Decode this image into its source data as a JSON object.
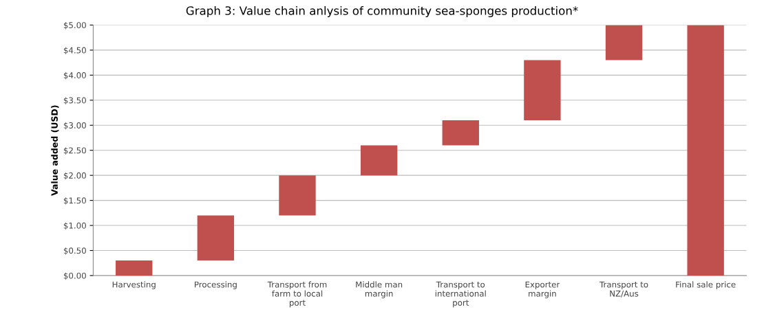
{
  "chart_data": {
    "type": "bar",
    "title": "Graph 3: Value chain anlysis of community sea-sponges production*",
    "ylabel": "Value added (USD)",
    "categories": [
      "Harvesting",
      "Processing",
      "Transport from\nfarm to local\nport",
      "Middle man\nmargin",
      "Transport to\ninternational\nport",
      "Exporter\nmargin",
      "Transport to\nNZ/Aus",
      "Final sale price"
    ],
    "base": [
      0,
      0.3,
      1.2,
      2.0,
      2.6,
      3.1,
      4.3,
      0
    ],
    "values": [
      0.3,
      0.9,
      0.8,
      0.6,
      0.5,
      1.2,
      0.7,
      5.0
    ],
    "color": "#c0504d",
    "ylim": [
      0,
      5
    ],
    "yticks": [
      {
        "value": 0,
        "label": "$0.00"
      },
      {
        "value": 0.5,
        "label": "$0.50"
      },
      {
        "value": 1,
        "label": "$1.00"
      },
      {
        "value": 1.5,
        "label": "$1.50"
      },
      {
        "value": 2,
        "label": "$2.00"
      },
      {
        "value": 2.5,
        "label": "$2.50"
      },
      {
        "value": 3,
        "label": "$3.00"
      },
      {
        "value": 3.5,
        "label": "$3.50"
      },
      {
        "value": 4,
        "label": "$4.00"
      },
      {
        "value": 4.5,
        "label": "$4.50"
      },
      {
        "value": 5,
        "label": "$5.00"
      }
    ],
    "grid": "y"
  }
}
